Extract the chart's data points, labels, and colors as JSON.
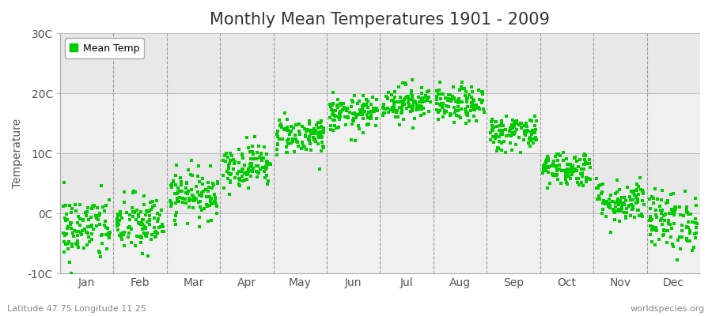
{
  "title": "Monthly Mean Temperatures 1901 - 2009",
  "ylabel": "Temperature",
  "xlabel_labels": [
    "Jan",
    "Feb",
    "Mar",
    "Apr",
    "May",
    "Jun",
    "Jul",
    "Aug",
    "Sep",
    "Oct",
    "Nov",
    "Dec"
  ],
  "subtitle": "Latitude 47.75 Longitude 11.25",
  "watermark": "worldspecies.org",
  "ylim": [
    -10,
    30
  ],
  "yticks": [
    -10,
    0,
    10,
    20,
    30
  ],
  "ytick_labels": [
    "-10C",
    "0C",
    "10C",
    "20C",
    "30C"
  ],
  "dot_color": "#00cc00",
  "dot_size": 5,
  "legend_label": "Mean Temp",
  "background_color": "#ffffff",
  "plot_bg_color": "#ffffff",
  "band_color_even": "#f0f0f0",
  "band_color_odd": "#e8e8e8",
  "title_fontsize": 15,
  "axis_fontsize": 10,
  "monthly_means": [
    -2.5,
    -1.8,
    3.2,
    8.0,
    13.0,
    16.5,
    18.5,
    18.0,
    13.5,
    7.5,
    2.0,
    -1.2
  ],
  "monthly_stds": [
    2.8,
    2.5,
    2.0,
    1.8,
    1.6,
    1.5,
    1.5,
    1.5,
    1.5,
    1.5,
    1.8,
    2.5
  ],
  "num_years": 109,
  "seed": 42
}
